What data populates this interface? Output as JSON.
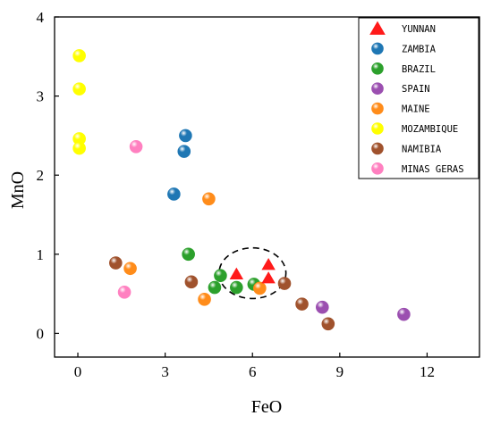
{
  "chart_data": {
    "type": "scatter",
    "xlabel": "FeO",
    "ylabel": "MnO",
    "xlim": [
      -0.8,
      13.8
    ],
    "ylim": [
      -0.3,
      4.0
    ],
    "xticks": [
      0,
      3,
      6,
      9,
      12
    ],
    "yticks": [
      0,
      1,
      2,
      3,
      4
    ],
    "x_tick_labels": [
      "0",
      "3",
      "6",
      "9",
      "12"
    ],
    "y_tick_labels": [
      "0",
      "1",
      "2",
      "3",
      "4"
    ],
    "grid": false,
    "legend_position": "top-right",
    "series": [
      {
        "name": "YUNNAN",
        "marker": "triangle",
        "color": "#ff1a1a",
        "points": [
          [
            5.45,
            0.75
          ],
          [
            6.55,
            0.87
          ],
          [
            6.55,
            0.7
          ]
        ]
      },
      {
        "name": "ZAMBIA",
        "marker": "sphere",
        "color": "#1f77b4",
        "points": [
          [
            3.3,
            1.76
          ],
          [
            3.65,
            2.3
          ],
          [
            3.7,
            2.5
          ]
        ]
      },
      {
        "name": "BRAZIL",
        "marker": "sphere",
        "color": "#2ca02c",
        "points": [
          [
            3.8,
            1.0
          ],
          [
            4.9,
            0.73
          ],
          [
            4.7,
            0.58
          ],
          [
            5.45,
            0.58
          ],
          [
            6.05,
            0.62
          ]
        ]
      },
      {
        "name": "SPAIN",
        "marker": "sphere",
        "color": "#9b4fb0",
        "points": [
          [
            8.4,
            0.33
          ],
          [
            11.2,
            0.24
          ]
        ]
      },
      {
        "name": "MAINE",
        "marker": "sphere",
        "color": "#ff8c1a",
        "points": [
          [
            4.5,
            1.7
          ],
          [
            1.8,
            0.82
          ],
          [
            4.35,
            0.43
          ],
          [
            6.25,
            0.57
          ]
        ]
      },
      {
        "name": "MOZAMBIQUE",
        "marker": "sphere",
        "color": "#ffff00",
        "points": [
          [
            0.05,
            3.51
          ],
          [
            0.05,
            3.09
          ],
          [
            0.05,
            2.46
          ],
          [
            0.05,
            2.34
          ]
        ]
      },
      {
        "name": "NAMIBIA",
        "marker": "sphere",
        "color": "#a0522d",
        "points": [
          [
            1.3,
            0.89
          ],
          [
            3.9,
            0.65
          ],
          [
            7.1,
            0.63
          ],
          [
            7.7,
            0.37
          ],
          [
            8.6,
            0.12
          ]
        ]
      },
      {
        "name": "MINAS GERAS",
        "marker": "sphere",
        "color": "#ff80c0",
        "points": [
          [
            2.0,
            2.36
          ],
          [
            1.6,
            0.52
          ]
        ]
      }
    ],
    "annotations": [
      {
        "type": "dashed-ellipse",
        "center": [
          6.0,
          0.76
        ],
        "radii": [
          1.15,
          0.32
        ]
      }
    ]
  }
}
